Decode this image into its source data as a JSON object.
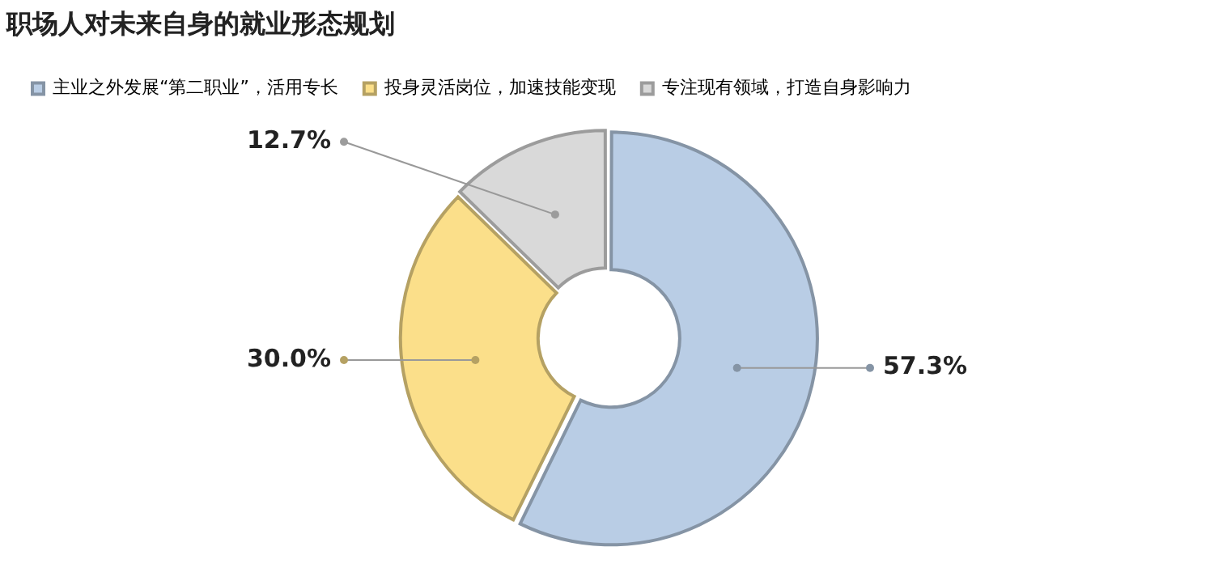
{
  "chart_data": {
    "type": "donut",
    "title": "职场人对未来自身的就业形态规划",
    "categories": [
      "主业之外发展“第二职业”，活用专长",
      "投身灵活岗位，加速技能变现",
      "专注现有领域，打造自身影响力"
    ],
    "values": [
      57.3,
      30.0,
      12.7
    ],
    "colors": [
      "#b9cde5",
      "#fbdf8a",
      "#d9d9d9"
    ],
    "value_labels": [
      "57.3%",
      "30.0%",
      "12.7%"
    ],
    "legend": "top left"
  }
}
